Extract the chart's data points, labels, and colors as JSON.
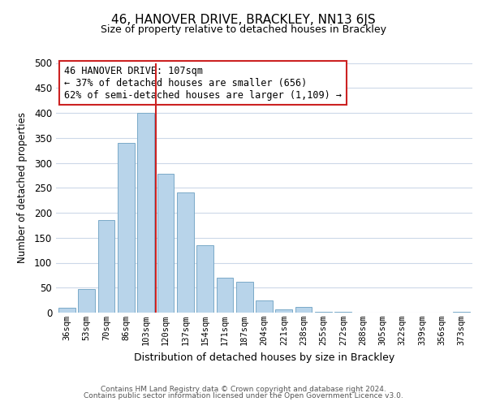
{
  "title": "46, HANOVER DRIVE, BRACKLEY, NN13 6JS",
  "subtitle": "Size of property relative to detached houses in Brackley",
  "xlabel": "Distribution of detached houses by size in Brackley",
  "ylabel": "Number of detached properties",
  "bar_labels": [
    "36sqm",
    "53sqm",
    "70sqm",
    "86sqm",
    "103sqm",
    "120sqm",
    "137sqm",
    "154sqm",
    "171sqm",
    "187sqm",
    "204sqm",
    "221sqm",
    "238sqm",
    "255sqm",
    "272sqm",
    "288sqm",
    "305sqm",
    "322sqm",
    "339sqm",
    "356sqm",
    "373sqm"
  ],
  "bar_values": [
    10,
    47,
    185,
    340,
    400,
    278,
    240,
    135,
    70,
    62,
    25,
    7,
    12,
    1,
    1,
    0,
    0,
    0,
    0,
    0,
    2
  ],
  "bar_color": "#b8d4ea",
  "bar_edge_color": "#7aaac8",
  "vline_x": 4.5,
  "vline_color": "#cc2222",
  "annotation_text": "46 HANOVER DRIVE: 107sqm\n← 37% of detached houses are smaller (656)\n62% of semi-detached houses are larger (1,109) →",
  "annotation_box_color": "#ffffff",
  "annotation_box_edge": "#cc2222",
  "ylim": [
    0,
    500
  ],
  "yticks": [
    0,
    50,
    100,
    150,
    200,
    250,
    300,
    350,
    400,
    450,
    500
  ],
  "footer_line1": "Contains HM Land Registry data © Crown copyright and database right 2024.",
  "footer_line2": "Contains public sector information licensed under the Open Government Licence v3.0.",
  "bg_color": "#ffffff",
  "grid_color": "#ccd8e8"
}
